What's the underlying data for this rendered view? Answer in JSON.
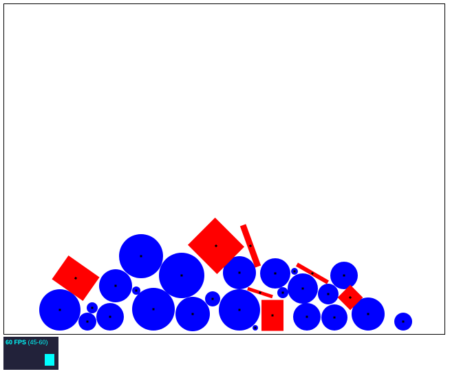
{
  "colors": {
    "ball": "#0000ff",
    "box": "#ff0000",
    "center_dot": "#000000",
    "fps_text": "#00ffff",
    "fps_bg": "#22223a"
  },
  "fps": {
    "value": "60 FPS",
    "range": "(45-60)",
    "fill_fraction": 1.0
  }
}
